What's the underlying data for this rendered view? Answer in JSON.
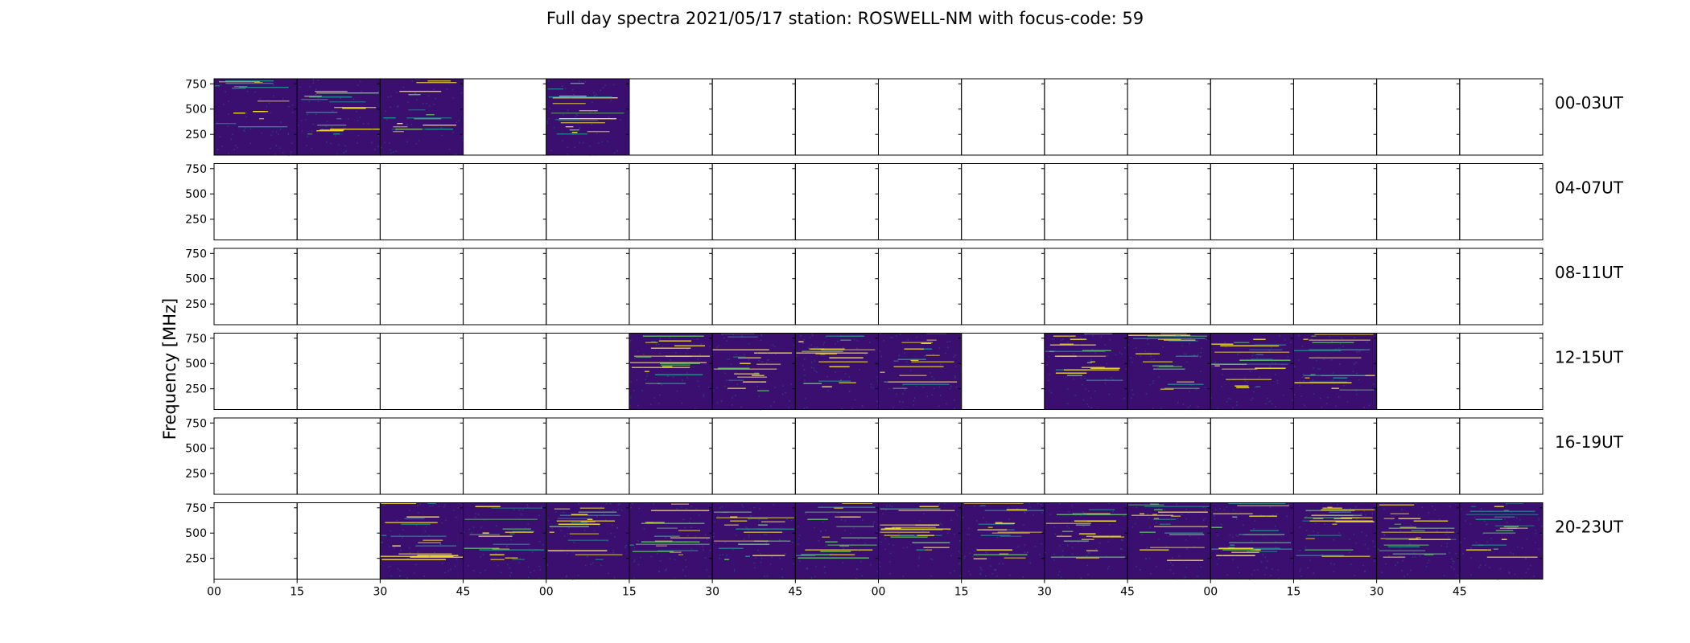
{
  "figure": {
    "title": "Full day spectra 2021/05/17 station: ROSWELL-NM with focus-code: 59",
    "ylabel": "Frequency [MHz]"
  },
  "colors": {
    "background": "#ffffff",
    "frame": "#000000",
    "spectra_base": "#3b0f70",
    "viridis_dark": "#440154",
    "viridis_teal": "#21918c",
    "viridis_green": "#5ec962",
    "viridis_yellow": "#fde725"
  },
  "chart_data": {
    "type": "heatmap",
    "title": "Full day spectra 2021/05/17 station: ROSWELL-NM with focus-code: 59",
    "ylabel": "Frequency [MHz]",
    "xlabel": "",
    "colormap": "viridis",
    "y_ticks": [
      250,
      500,
      750
    ],
    "ylim": [
      45,
      800
    ],
    "x_ticks": [
      "00",
      "15",
      "30",
      "45",
      "00",
      "15",
      "30",
      "45",
      "00",
      "15",
      "30",
      "45",
      "00",
      "15",
      "30",
      "45"
    ],
    "segment_minutes": 15,
    "rows": [
      {
        "label": "00-03UT",
        "data": [
          1,
          1,
          1,
          0,
          1,
          0,
          0,
          0,
          0,
          0,
          0,
          0,
          0,
          0,
          0,
          0
        ]
      },
      {
        "label": "04-07UT",
        "data": [
          0,
          0,
          0,
          0,
          0,
          0,
          0,
          0,
          0,
          0,
          0,
          0,
          0,
          0,
          0,
          0
        ]
      },
      {
        "label": "08-11UT",
        "data": [
          0,
          0,
          0,
          0,
          0,
          0,
          0,
          0,
          0,
          0,
          0,
          0,
          0,
          0,
          0,
          0
        ]
      },
      {
        "label": "12-15UT",
        "data": [
          0,
          0,
          0,
          0,
          0,
          1,
          1,
          1,
          1,
          0,
          1,
          1,
          1,
          1,
          0,
          0
        ]
      },
      {
        "label": "16-19UT",
        "data": [
          0,
          0,
          0,
          0,
          0,
          0,
          0,
          0,
          0,
          0,
          0,
          0,
          0,
          0,
          0,
          0
        ]
      },
      {
        "label": "20-23UT",
        "data": [
          0,
          0,
          1,
          1,
          1,
          1,
          1,
          1,
          1,
          1,
          1,
          1,
          1,
          1,
          1,
          1
        ]
      }
    ]
  }
}
